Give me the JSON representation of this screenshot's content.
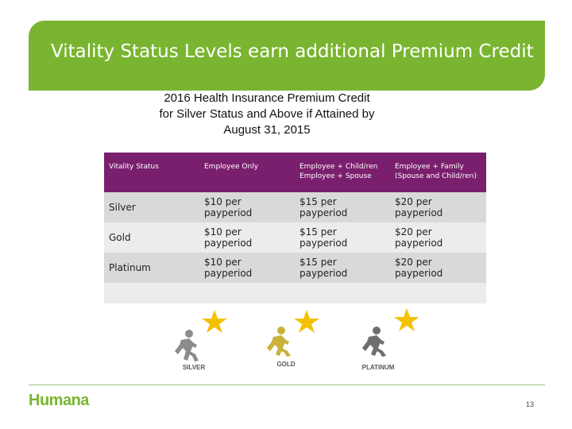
{
  "slide": {
    "title": "Vitality Status Levels earn additional Premium Credit",
    "subtitle_lines": [
      "2016 Health Insurance Premium Credit",
      "for Silver Status and Above if Attained by",
      "August 31, 2015"
    ],
    "page_number": "13",
    "logo_text": "Humana"
  },
  "table": {
    "headers": [
      [
        "Vitality Status"
      ],
      [
        "Employee Only"
      ],
      [
        "Employee + Child/ren",
        "Employee + Spouse"
      ],
      [
        "Employee + Family",
        "(Spouse and Child/ren)"
      ]
    ],
    "rows": [
      [
        "Silver",
        "$10 per payperiod",
        "$15 per payperiod",
        "$20 per payperiod"
      ],
      [
        "Gold",
        "$10 per payperiod",
        "$15 per payperiod",
        "$20 per payperiod"
      ],
      [
        "Platinum",
        "$10 per payperiod",
        "$15 per payperiod",
        "$20 per payperiod"
      ]
    ]
  },
  "badges": [
    {
      "label": "SILVER",
      "runner_color": "#8c8c8c"
    },
    {
      "label": "GOLD",
      "runner_color": "#c8b23a"
    },
    {
      "label": "PLATINUM",
      "runner_color": "#6e6e6e"
    }
  ],
  "colors": {
    "banner": "#79b530",
    "header": "#7a1f6d",
    "star": "#f2c200",
    "logo": "#79b530"
  }
}
